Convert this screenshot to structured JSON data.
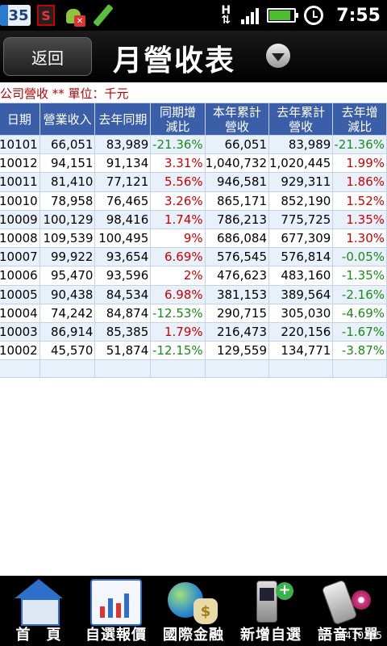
{
  "status_bar": {
    "calendar_day": "35",
    "s_badge": "S",
    "network_type": "H",
    "time": "7:55"
  },
  "header": {
    "back_label": "返回",
    "title": "月營收表"
  },
  "info_line": "公司營收 ** 單位：千元",
  "table": {
    "columns": [
      {
        "line1": "日期",
        "line2": ""
      },
      {
        "line1": "營業收入",
        "line2": ""
      },
      {
        "line1": "去年同期",
        "line2": ""
      },
      {
        "line1": "同期增",
        "line2": "減比"
      },
      {
        "line1": "本年累計",
        "line2": "營收"
      },
      {
        "line1": "去年累計",
        "line2": "營收"
      },
      {
        "line1": "去年增",
        "line2": "減比"
      }
    ],
    "rows": [
      {
        "date": "10101",
        "revenue": "66,051",
        "last_year": "83,989",
        "yoy": "-21.36%",
        "ytd": "66,051",
        "last_ytd": "83,989",
        "ytd_change": "-21.36%",
        "yoy_sign": "neg",
        "ytd_sign": "neg"
      },
      {
        "date": "10012",
        "revenue": "94,151",
        "last_year": "91,134",
        "yoy": "3.31%",
        "ytd": "1,040,732",
        "last_ytd": "1,020,445",
        "ytd_change": "1.99%",
        "yoy_sign": "pos",
        "ytd_sign": "pos"
      },
      {
        "date": "10011",
        "revenue": "81,410",
        "last_year": "77,121",
        "yoy": "5.56%",
        "ytd": "946,581",
        "last_ytd": "929,311",
        "ytd_change": "1.86%",
        "yoy_sign": "pos",
        "ytd_sign": "pos"
      },
      {
        "date": "10010",
        "revenue": "78,958",
        "last_year": "76,465",
        "yoy": "3.26%",
        "ytd": "865,171",
        "last_ytd": "852,190",
        "ytd_change": "1.52%",
        "yoy_sign": "pos",
        "ytd_sign": "pos"
      },
      {
        "date": "10009",
        "revenue": "100,129",
        "last_year": "98,416",
        "yoy": "1.74%",
        "ytd": "786,213",
        "last_ytd": "775,725",
        "ytd_change": "1.35%",
        "yoy_sign": "pos",
        "ytd_sign": "pos"
      },
      {
        "date": "10008",
        "revenue": "109,539",
        "last_year": "100,495",
        "yoy": "9%",
        "ytd": "686,084",
        "last_ytd": "677,309",
        "ytd_change": "1.30%",
        "yoy_sign": "pos",
        "ytd_sign": "pos"
      },
      {
        "date": "10007",
        "revenue": "99,922",
        "last_year": "93,654",
        "yoy": "6.69%",
        "ytd": "576,545",
        "last_ytd": "576,814",
        "ytd_change": "-0.05%",
        "yoy_sign": "pos",
        "ytd_sign": "neg"
      },
      {
        "date": "10006",
        "revenue": "95,470",
        "last_year": "93,596",
        "yoy": "2%",
        "ytd": "476,623",
        "last_ytd": "483,160",
        "ytd_change": "-1.35%",
        "yoy_sign": "pos",
        "ytd_sign": "neg"
      },
      {
        "date": "10005",
        "revenue": "90,438",
        "last_year": "84,534",
        "yoy": "6.98%",
        "ytd": "381,153",
        "last_ytd": "389,564",
        "ytd_change": "-2.16%",
        "yoy_sign": "pos",
        "ytd_sign": "neg"
      },
      {
        "date": "10004",
        "revenue": "74,242",
        "last_year": "84,874",
        "yoy": "-12.53%",
        "ytd": "290,715",
        "last_ytd": "305,030",
        "ytd_change": "-4.69%",
        "yoy_sign": "neg",
        "ytd_sign": "neg"
      },
      {
        "date": "10003",
        "revenue": "86,914",
        "last_year": "85,385",
        "yoy": "1.79%",
        "ytd": "216,473",
        "last_ytd": "220,156",
        "ytd_change": "-1.67%",
        "yoy_sign": "pos",
        "ytd_sign": "neg"
      },
      {
        "date": "10002",
        "revenue": "45,570",
        "last_year": "51,874",
        "yoy": "-12.15%",
        "ytd": "129,559",
        "last_ytd": "134,771",
        "ytd_change": "-3.87%",
        "yoy_sign": "neg",
        "ytd_sign": "neg"
      }
    ]
  },
  "bottom_nav": {
    "items": [
      {
        "label": "首　頁",
        "icon": "home-icon"
      },
      {
        "label": "自選報價",
        "icon": "chart-icon"
      },
      {
        "label": "國際金融",
        "icon": "globe-money-icon"
      },
      {
        "label": "新增自選",
        "icon": "phone-add-icon"
      },
      {
        "label": "語音下單",
        "icon": "voice-phone-icon"
      }
    ]
  },
  "watermark": "#410255",
  "colors": {
    "header_blue": "#3a5fa8",
    "positive": "#c00000",
    "negative": "#1a8a1a",
    "info_red": "#b00000"
  }
}
